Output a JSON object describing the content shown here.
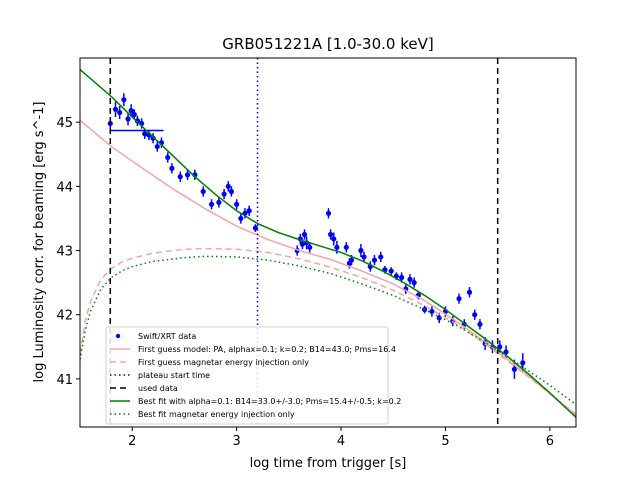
{
  "chart_data": {
    "type": "scatter",
    "title": "GRB051221A [1.0-30.0 keV]",
    "xlabel": "log time from trigger [s]",
    "ylabel": "log Luminosity corr. for beaming [erg s^-1]",
    "xlim": [
      1.5,
      6.25
    ],
    "ylim": [
      40.25,
      46.0
    ],
    "xticks": [
      2,
      3,
      4,
      5,
      6
    ],
    "yticks": [
      41,
      42,
      43,
      44,
      45
    ],
    "xtick_labels": [
      "2",
      "3",
      "4",
      "5",
      "6"
    ],
    "ytick_labels": [
      "41",
      "42",
      "43",
      "44",
      "45"
    ],
    "grid": false,
    "legend_position": "lower-center",
    "series": [
      {
        "name": "Swift/XRT data",
        "kind": "errorbar",
        "color": "#0000ff",
        "points": [
          {
            "x": 1.79,
            "y": 44.98,
            "ey": 0.1
          },
          {
            "x": 1.84,
            "y": 45.2,
            "ey": 0.12
          },
          {
            "x": 1.88,
            "y": 45.15,
            "ey": 0.1
          },
          {
            "x": 1.92,
            "y": 45.35,
            "ey": 0.1
          },
          {
            "x": 1.96,
            "y": 45.05,
            "ey": 0.1
          },
          {
            "x": 1.99,
            "y": 45.18,
            "ey": 0.1
          },
          {
            "x": 2.02,
            "y": 45.12,
            "ey": 0.08
          },
          {
            "x": 2.05,
            "y": 45.02,
            "ey": 0.08
          },
          {
            "x": 2.09,
            "y": 44.98,
            "ey": 0.08
          },
          {
            "x": 2.12,
            "y": 44.82,
            "ey": 0.08
          },
          {
            "x": 2.16,
            "y": 44.8,
            "ey": 0.08
          },
          {
            "x": 2.2,
            "y": 44.75,
            "ey": 0.08
          },
          {
            "x": 2.24,
            "y": 44.62,
            "ey": 0.08
          },
          {
            "x": 2.28,
            "y": 44.68,
            "ey": 0.08
          },
          {
            "x": 2.34,
            "y": 44.45,
            "ey": 0.08
          },
          {
            "x": 2.38,
            "y": 44.28,
            "ey": 0.08
          },
          {
            "x": 2.46,
            "y": 44.15,
            "ey": 0.08
          },
          {
            "x": 2.53,
            "y": 44.18,
            "ey": 0.08
          },
          {
            "x": 2.6,
            "y": 44.18,
            "ey": 0.08
          },
          {
            "x": 2.68,
            "y": 43.92,
            "ey": 0.08
          },
          {
            "x": 2.76,
            "y": 43.72,
            "ey": 0.08
          },
          {
            "x": 2.83,
            "y": 43.75,
            "ey": 0.08
          },
          {
            "x": 2.88,
            "y": 43.88,
            "ey": 0.08
          },
          {
            "x": 2.92,
            "y": 44.0,
            "ey": 0.08
          },
          {
            "x": 2.95,
            "y": 43.92,
            "ey": 0.08
          },
          {
            "x": 3.0,
            "y": 43.72,
            "ey": 0.08
          },
          {
            "x": 3.04,
            "y": 43.5,
            "ey": 0.08
          },
          {
            "x": 3.08,
            "y": 43.58,
            "ey": 0.08
          },
          {
            "x": 3.12,
            "y": 43.62,
            "ey": 0.08
          },
          {
            "x": 3.18,
            "y": 43.35,
            "ey": 0.06
          },
          {
            "x": 3.58,
            "y": 43.0,
            "ey": 0.08
          },
          {
            "x": 3.61,
            "y": 43.18,
            "ey": 0.08
          },
          {
            "x": 3.63,
            "y": 43.1,
            "ey": 0.08
          },
          {
            "x": 3.65,
            "y": 43.25,
            "ey": 0.08
          },
          {
            "x": 3.67,
            "y": 43.12,
            "ey": 0.1
          },
          {
            "x": 3.7,
            "y": 43.05,
            "ey": 0.08
          },
          {
            "x": 3.88,
            "y": 43.58,
            "ey": 0.08
          },
          {
            "x": 3.9,
            "y": 43.25,
            "ey": 0.08
          },
          {
            "x": 3.93,
            "y": 43.18,
            "ey": 0.1
          },
          {
            "x": 3.96,
            "y": 43.05,
            "ey": 0.1
          },
          {
            "x": 4.05,
            "y": 43.05,
            "ey": 0.08
          },
          {
            "x": 4.08,
            "y": 42.8,
            "ey": 0.08
          },
          {
            "x": 4.1,
            "y": 42.85,
            "ey": 0.08
          },
          {
            "x": 4.19,
            "y": 43.0,
            "ey": 0.1
          },
          {
            "x": 4.22,
            "y": 42.9,
            "ey": 0.08
          },
          {
            "x": 4.28,
            "y": 42.75,
            "ey": 0.08
          },
          {
            "x": 4.32,
            "y": 42.85,
            "ey": 0.08
          },
          {
            "x": 4.38,
            "y": 42.9,
            "ey": 0.08
          },
          {
            "x": 4.42,
            "y": 42.7,
            "ey": 0.06
          },
          {
            "x": 4.48,
            "y": 42.68,
            "ey": 0.06
          },
          {
            "x": 4.53,
            "y": 42.6,
            "ey": 0.06
          },
          {
            "x": 4.58,
            "y": 42.58,
            "ey": 0.08
          },
          {
            "x": 4.62,
            "y": 42.4,
            "ey": 0.08
          },
          {
            "x": 4.66,
            "y": 42.55,
            "ey": 0.08
          },
          {
            "x": 4.7,
            "y": 42.5,
            "ey": 0.08
          },
          {
            "x": 4.74,
            "y": 42.3,
            "ey": 0.06
          },
          {
            "x": 4.8,
            "y": 42.08,
            "ey": 0.06
          },
          {
            "x": 4.87,
            "y": 42.05,
            "ey": 0.08
          },
          {
            "x": 4.94,
            "y": 41.95,
            "ey": 0.08
          },
          {
            "x": 5.0,
            "y": 42.05,
            "ey": 0.08
          },
          {
            "x": 5.07,
            "y": 41.9,
            "ey": 0.08
          },
          {
            "x": 5.13,
            "y": 42.25,
            "ey": 0.08
          },
          {
            "x": 5.18,
            "y": 41.85,
            "ey": 0.08
          },
          {
            "x": 5.23,
            "y": 42.35,
            "ey": 0.08
          },
          {
            "x": 5.28,
            "y": 42.0,
            "ey": 0.08
          },
          {
            "x": 5.33,
            "y": 41.85,
            "ey": 0.08
          },
          {
            "x": 5.38,
            "y": 41.55,
            "ey": 0.1
          },
          {
            "x": 5.45,
            "y": 41.5,
            "ey": 0.1
          },
          {
            "x": 5.52,
            "y": 41.5,
            "ey": 0.1
          },
          {
            "x": 5.58,
            "y": 41.42,
            "ey": 0.1
          },
          {
            "x": 5.66,
            "y": 41.15,
            "ey": 0.15
          },
          {
            "x": 5.74,
            "y": 41.25,
            "ey": 0.15
          }
        ],
        "hbar": {
          "x0": 1.79,
          "x1": 2.3,
          "y": 44.87
        }
      },
      {
        "name": "First guess model: PA, alphax=0.1; k=0.2; B14=43.0; Pms=16.4",
        "kind": "line",
        "color": "#f4a6a6",
        "dash": "solid",
        "x": [
          1.5,
          1.8,
          2.1,
          2.4,
          2.7,
          3.0,
          3.3,
          3.6,
          3.9,
          4.2,
          4.5,
          4.8,
          5.1,
          5.4,
          5.7,
          6.0,
          6.25
        ],
        "y": [
          45.03,
          44.62,
          44.28,
          43.95,
          43.65,
          43.38,
          43.17,
          43.0,
          42.86,
          42.68,
          42.48,
          42.22,
          41.9,
          41.55,
          41.17,
          40.77,
          40.43
        ]
      },
      {
        "name": "First guess magnetar energy injection only",
        "kind": "line",
        "color": "#f4a6a6",
        "dash": "dashed",
        "x": [
          1.5,
          1.55,
          1.6,
          1.7,
          1.8,
          1.9,
          2.0,
          2.2,
          2.5,
          2.7,
          3.0,
          3.3,
          3.6,
          3.9,
          4.2,
          4.5,
          4.8,
          5.1,
          5.4,
          5.7,
          6.0,
          6.25
        ],
        "y": [
          41.4,
          41.9,
          42.2,
          42.55,
          42.72,
          42.82,
          42.88,
          42.96,
          43.02,
          43.03,
          43.02,
          42.97,
          42.87,
          42.74,
          42.58,
          42.38,
          42.14,
          41.86,
          41.52,
          41.15,
          40.77,
          40.45
        ]
      },
      {
        "name": "plateau start time",
        "kind": "vline",
        "color": "#0000cc",
        "dash": "dotted",
        "x": 3.2
      },
      {
        "name": "used data",
        "kind": "vline",
        "color": "#000000",
        "dash": "dashed",
        "x": [
          1.79,
          5.5
        ]
      },
      {
        "name": "Best fit with alpha=0.1: B14=33.0+/-3.0; Pms=15.4+/-0.5; k=0.2",
        "kind": "line",
        "color": "#008000",
        "dash": "solid",
        "x": [
          1.5,
          1.8,
          2.0,
          2.2,
          2.4,
          2.6,
          2.8,
          3.0,
          3.2,
          3.4,
          3.6,
          3.8,
          4.0,
          4.2,
          4.4,
          4.6,
          4.8,
          5.0,
          5.2,
          5.4,
          5.6,
          5.8,
          6.0,
          6.25
        ],
        "y": [
          45.82,
          45.4,
          45.08,
          44.77,
          44.46,
          44.15,
          43.87,
          43.62,
          43.42,
          43.28,
          43.17,
          43.07,
          42.97,
          42.84,
          42.68,
          42.5,
          42.3,
          42.08,
          41.84,
          41.6,
          41.34,
          41.07,
          40.78,
          40.4
        ]
      },
      {
        "name": "Best fit magnetar energy injection only",
        "kind": "line",
        "color": "#008000",
        "dash": "dotted",
        "x": [
          1.5,
          1.55,
          1.6,
          1.7,
          1.8,
          1.9,
          2.0,
          2.2,
          2.5,
          2.7,
          3.0,
          3.3,
          3.6,
          3.9,
          4.2,
          4.5,
          4.8,
          5.1,
          5.4,
          5.7,
          6.0,
          6.25
        ],
        "y": [
          41.3,
          41.75,
          42.05,
          42.4,
          42.58,
          42.68,
          42.75,
          42.83,
          42.89,
          42.91,
          42.9,
          42.85,
          42.76,
          42.64,
          42.48,
          42.3,
          42.08,
          41.84,
          41.55,
          41.23,
          40.9,
          40.6
        ]
      }
    ]
  }
}
